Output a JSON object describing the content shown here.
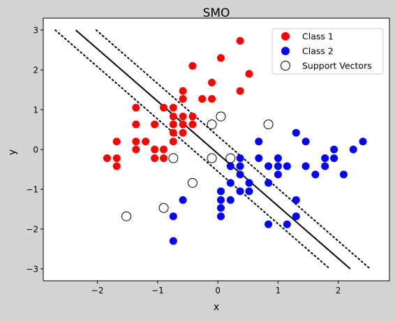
{
  "chart_data": {
    "type": "scatter",
    "title": "SMO",
    "xlabel": "x",
    "ylabel": "y",
    "xlim": [
      -2.9,
      2.85
    ],
    "ylim": [
      -3.3,
      3.3
    ],
    "xticks": [
      -2,
      -1,
      0,
      1,
      2
    ],
    "yticks": [
      -3,
      -2,
      -1,
      0,
      1,
      2,
      3
    ],
    "grid": false,
    "legend_position": "top-right",
    "colors": {
      "figure_bg": "#d3d3d3",
      "axes_bg": "#ffffff",
      "class1": "#ff0000",
      "class2": "#0000ff",
      "line": "#000000"
    },
    "legend": [
      {
        "label": "Class 1",
        "marker": "filled",
        "color": "#ff0000"
      },
      {
        "label": "Class 2",
        "marker": "filled",
        "color": "#0000ff"
      },
      {
        "label": "Support Vectors",
        "marker": "hollow",
        "color": "#000000"
      }
    ],
    "series": [
      {
        "name": "Class 1",
        "color": "#ff0000",
        "points": [
          [
            0.37,
            2.73
          ],
          [
            0.05,
            2.3
          ],
          [
            0.52,
            1.9
          ],
          [
            -0.42,
            2.1
          ],
          [
            -0.1,
            1.68
          ],
          [
            0.37,
            1.47
          ],
          [
            -0.58,
            1.47
          ],
          [
            -0.58,
            1.27
          ],
          [
            -0.26,
            1.27
          ],
          [
            -0.1,
            1.27
          ],
          [
            -1.36,
            1.05
          ],
          [
            -0.9,
            1.05
          ],
          [
            -0.74,
            1.05
          ],
          [
            -0.58,
            0.83
          ],
          [
            -0.42,
            0.83
          ],
          [
            -0.74,
            0.83
          ],
          [
            -1.36,
            0.63
          ],
          [
            -1.05,
            0.63
          ],
          [
            -0.74,
            0.63
          ],
          [
            -0.58,
            0.63
          ],
          [
            -0.42,
            0.63
          ],
          [
            -0.74,
            0.42
          ],
          [
            -0.58,
            0.42
          ],
          [
            -1.68,
            0.2
          ],
          [
            -1.36,
            0.2
          ],
          [
            -1.2,
            0.2
          ],
          [
            -0.74,
            0.2
          ],
          [
            -1.36,
            0.0
          ],
          [
            -1.05,
            0.0
          ],
          [
            -0.9,
            0.0
          ],
          [
            -1.84,
            -0.22
          ],
          [
            -1.68,
            -0.22
          ],
          [
            -1.05,
            -0.22
          ],
          [
            -0.9,
            -0.22
          ],
          [
            -1.68,
            -0.42
          ]
        ]
      },
      {
        "name": "Class 2",
        "color": "#0000ff",
        "points": [
          [
            1.3,
            0.42
          ],
          [
            1.46,
            0.2
          ],
          [
            0.68,
            0.2
          ],
          [
            2.41,
            0.2
          ],
          [
            1.93,
            0.0
          ],
          [
            2.25,
            0.0
          ],
          [
            0.68,
            -0.22
          ],
          [
            1.0,
            -0.22
          ],
          [
            0.37,
            -0.22
          ],
          [
            1.78,
            -0.22
          ],
          [
            1.93,
            -0.22
          ],
          [
            0.21,
            -0.42
          ],
          [
            0.37,
            -0.42
          ],
          [
            0.84,
            -0.42
          ],
          [
            1.0,
            -0.42
          ],
          [
            1.15,
            -0.42
          ],
          [
            1.46,
            -0.42
          ],
          [
            1.78,
            -0.42
          ],
          [
            0.37,
            -0.63
          ],
          [
            1.0,
            -0.63
          ],
          [
            1.62,
            -0.63
          ],
          [
            2.09,
            -0.63
          ],
          [
            0.21,
            -0.84
          ],
          [
            0.52,
            -0.84
          ],
          [
            0.84,
            -0.84
          ],
          [
            0.05,
            -1.05
          ],
          [
            0.37,
            -1.05
          ],
          [
            0.52,
            -1.05
          ],
          [
            0.05,
            -1.27
          ],
          [
            0.21,
            -1.27
          ],
          [
            1.3,
            -1.27
          ],
          [
            -0.58,
            -1.27
          ],
          [
            0.05,
            -1.47
          ],
          [
            -0.74,
            -1.68
          ],
          [
            0.05,
            -1.68
          ],
          [
            1.3,
            -1.68
          ],
          [
            0.84,
            -1.88
          ],
          [
            1.15,
            -1.88
          ],
          [
            -0.74,
            -2.3
          ]
        ]
      }
    ],
    "support_vectors": [
      [
        0.05,
        0.83
      ],
      [
        0.84,
        0.63
      ],
      [
        -0.1,
        0.63
      ],
      [
        -0.74,
        -0.22
      ],
      [
        -0.1,
        -0.22
      ],
      [
        0.21,
        -0.22
      ],
      [
        -0.42,
        -0.84
      ],
      [
        -0.9,
        -1.47
      ],
      [
        -1.52,
        -1.68
      ]
    ],
    "decision_boundary": [
      [
        -2.36,
        3.0
      ],
      [
        2.2,
        -3.0
      ]
    ],
    "margin_upper": [
      [
        -2.02,
        3.0
      ],
      [
        2.53,
        -3.0
      ]
    ],
    "margin_lower": [
      [
        -2.7,
        3.0
      ],
      [
        1.86,
        -3.0
      ]
    ]
  }
}
